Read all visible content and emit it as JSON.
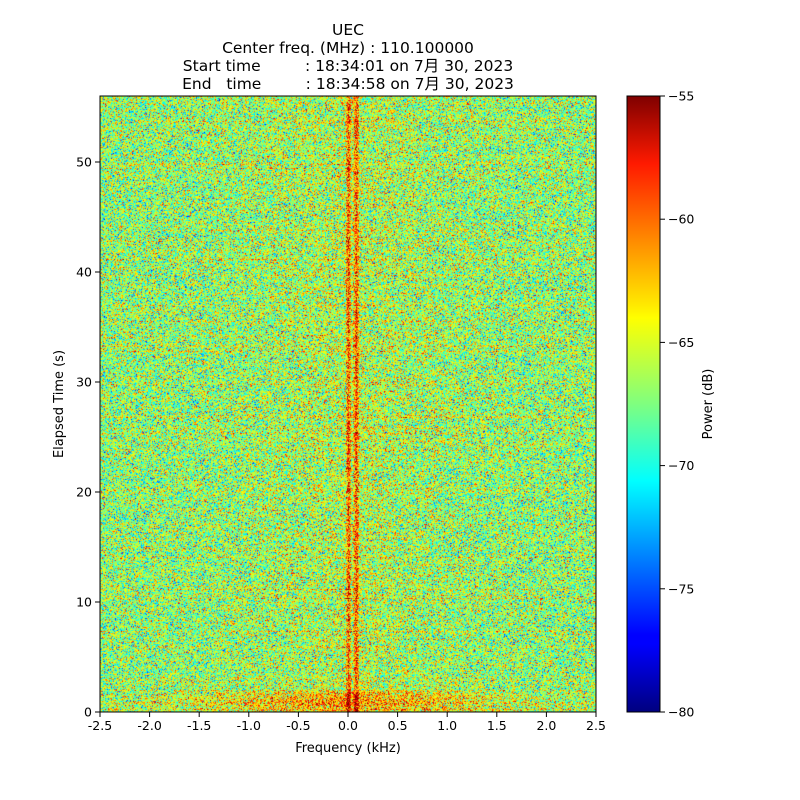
{
  "chart_data": {
    "type": "heatmap",
    "title_lines": [
      "UEC",
      "Center freq. (MHz) : 110.100000",
      "Start time         : 18:34:01 on 7月 30, 2023",
      "End   time         : 18:34:58 on 7月 30, 2023"
    ],
    "xlabel": "Frequency (kHz)",
    "ylabel": "Elapsed Time (s)",
    "xlim": [
      -2.5,
      2.5
    ],
    "ylim": [
      0,
      56
    ],
    "xticks": [
      -2.5,
      -2.0,
      -1.5,
      -1.0,
      -0.5,
      0.0,
      0.5,
      1.0,
      1.5,
      2.0,
      2.5
    ],
    "xtick_labels": [
      "-2.5",
      "-2.0",
      "-1.5",
      "-1.0",
      "-0.5",
      "0.0",
      "0.5",
      "1.0",
      "1.5",
      "2.0",
      "2.5"
    ],
    "yticks": [
      0,
      10,
      20,
      30,
      40,
      50
    ],
    "ytick_labels": [
      "0",
      "10",
      "20",
      "30",
      "40",
      "50"
    ],
    "colormap": "jet",
    "colorbar": {
      "label": "Power (dB)",
      "range": [
        -80,
        -55
      ],
      "ticks": [
        -80,
        -75,
        -70,
        -65,
        -60,
        -55
      ],
      "tick_labels": [
        "−80",
        "−75",
        "−70",
        "−65",
        "−60",
        "−55"
      ]
    },
    "features": {
      "noise_floor_db": -67,
      "carrier_lines_khz": [
        0.0,
        0.08
      ],
      "strong_band_time_s": [
        0,
        2
      ]
    }
  }
}
